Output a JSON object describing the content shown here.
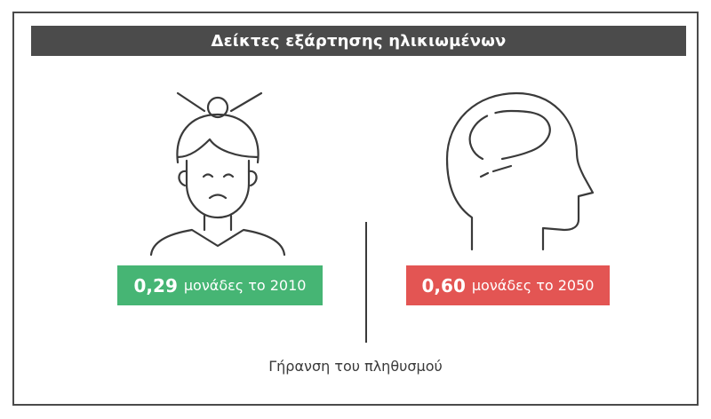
{
  "title": "Δείκτες εξάρτησης ηλικιωμένων",
  "icons": {
    "left": "elderly-woman-icon",
    "right": "head-brain-icon"
  },
  "indicators": [
    {
      "value": "0,29",
      "label": "μονάδες το 2010",
      "color": "#46b574"
    },
    {
      "value": "0,60",
      "label": "μονάδες το 2050",
      "color": "#e35553"
    }
  ],
  "caption": "Γήρανση του πληθυσμού",
  "colors": {
    "title_bar": "#4b4b4b",
    "frame": "#4a4a4a",
    "line_art": "#3a3a3a"
  }
}
